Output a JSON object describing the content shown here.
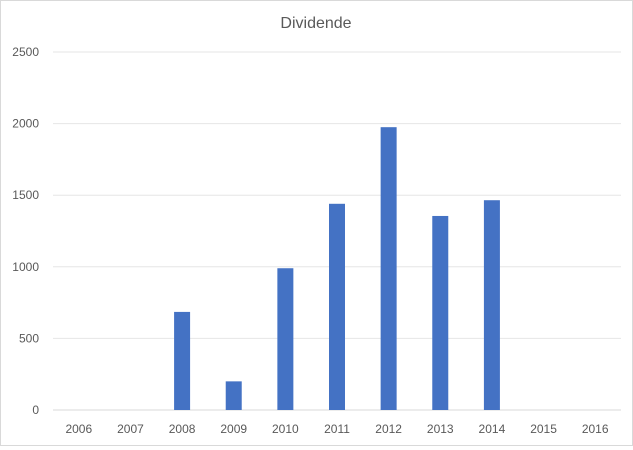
{
  "chart_data": {
    "type": "bar",
    "title": "Dividende",
    "xlabel": "",
    "ylabel": "",
    "categories": [
      "2006",
      "2007",
      "2008",
      "2009",
      "2010",
      "2011",
      "2012",
      "2013",
      "2014",
      "2015",
      "2016"
    ],
    "values": [
      0,
      0,
      685,
      200,
      990,
      1440,
      1975,
      1355,
      1465,
      0,
      0
    ],
    "ylim": [
      0,
      2500
    ],
    "yticks": [
      "0",
      "500",
      "1000",
      "1500",
      "2000",
      "2500"
    ],
    "grid": true,
    "legend": "none",
    "bar_color": "#4472C4"
  }
}
